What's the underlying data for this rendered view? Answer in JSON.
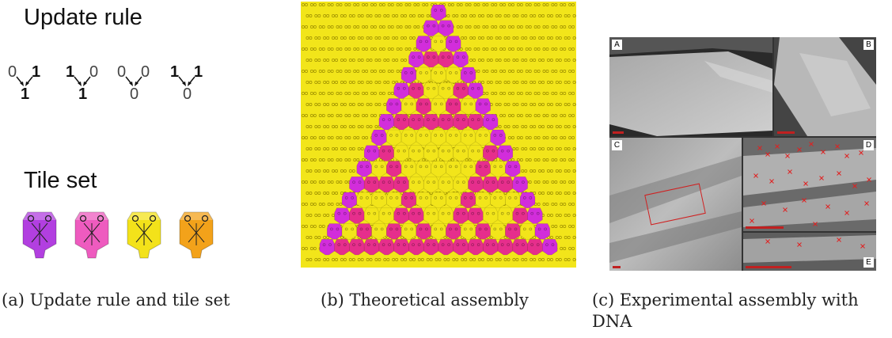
{
  "panel_a": {
    "update_rule_title": "Update rule",
    "rules": [
      {
        "in_left": "0",
        "in_right": "1",
        "out": "1",
        "left_bold": false,
        "right_bold": true,
        "out_bold": true
      },
      {
        "in_left": "1",
        "in_right": "0",
        "out": "1",
        "left_bold": true,
        "right_bold": false,
        "out_bold": true
      },
      {
        "in_left": "0",
        "in_right": "0",
        "out": "0",
        "left_bold": false,
        "right_bold": false,
        "out_bold": false
      },
      {
        "in_left": "1",
        "in_right": "1",
        "out": "0",
        "left_bold": true,
        "right_bold": true,
        "out_bold": false
      }
    ],
    "tile_set_title": "Tile set",
    "tile_colors": [
      "#b23fe0",
      "#ee5bbf",
      "#f3e21a",
      "#f3a21a"
    ]
  },
  "panel_b": {
    "colors": {
      "background_tile": "#f2e51a",
      "zero_tile": "#e62e8c",
      "one_tile": "#d22ddb"
    }
  },
  "panel_c": {
    "labels": [
      "A",
      "B",
      "C",
      "D",
      "E"
    ],
    "marker_color": "#e02020"
  },
  "captions": {
    "a": "(a)  Update rule and tile set",
    "b": "(b)  Theoretical assembly",
    "c_line1": "(c)  Experimental assembly with",
    "c_line2": "DNA"
  }
}
